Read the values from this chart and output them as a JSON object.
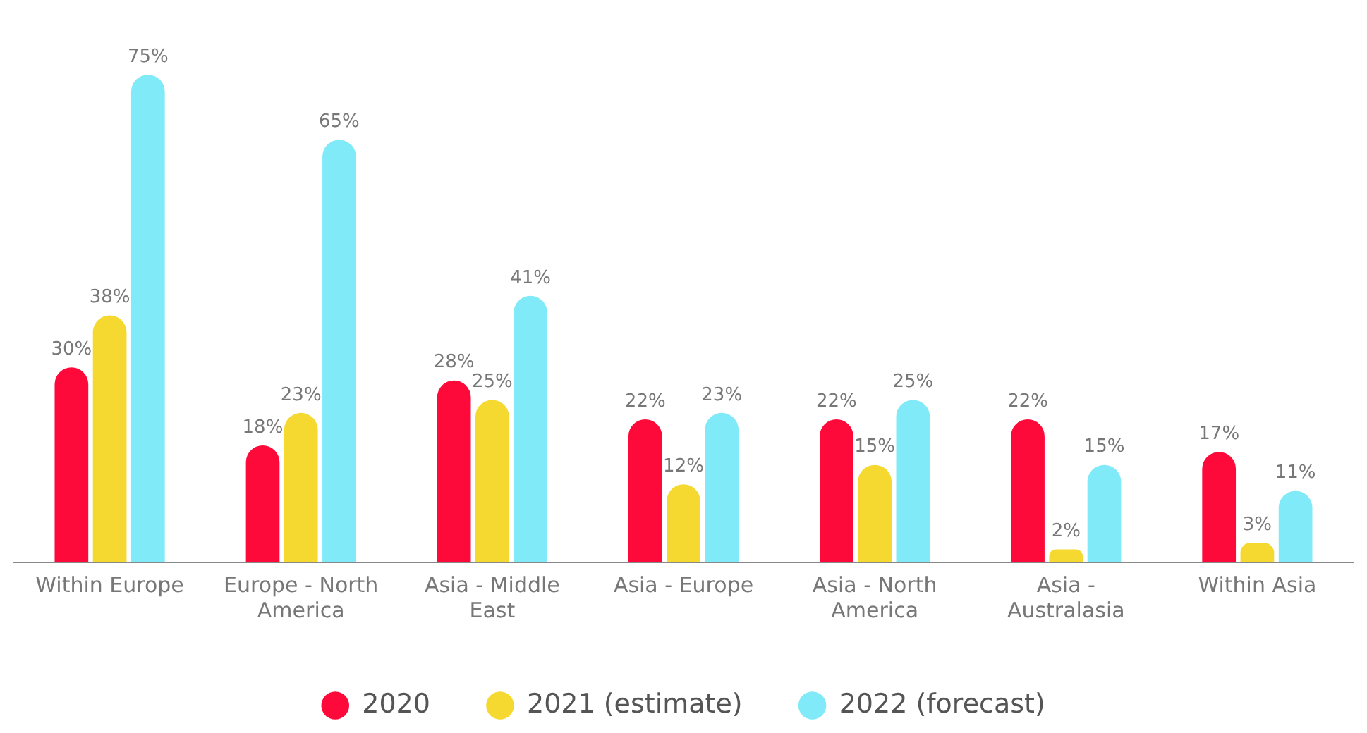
{
  "chart_data": {
    "type": "bar",
    "categories": [
      "Within Europe",
      "Europe - North America",
      "Asia - Middle East",
      "Asia - Europe",
      "Asia - North America",
      "Asia - Australasia",
      "Within Asia"
    ],
    "series": [
      {
        "name": "2020",
        "color": "#fd0a3a",
        "values": [
          30,
          18,
          28,
          22,
          22,
          22,
          17
        ],
        "value_labels": [
          "30%",
          "18%",
          "28%",
          "22%",
          "22%",
          "22%",
          "17%"
        ]
      },
      {
        "name": "2021 (estimate)",
        "color": "#f5d931",
        "values": [
          38,
          23,
          25,
          12,
          15,
          2,
          3
        ],
        "value_labels": [
          "38%",
          "23%",
          "25%",
          "12%",
          "15%",
          "2%",
          "3%"
        ]
      },
      {
        "name": "2022 (forecast)",
        "color": "#80eaf8",
        "values": [
          75,
          65,
          41,
          23,
          25,
          15,
          11
        ],
        "value_labels": [
          "75%",
          "65%",
          "41%",
          "23%",
          "25%",
          "15%",
          "11%"
        ]
      }
    ],
    "legend": "bottom",
    "tick_labels": "x"
  }
}
